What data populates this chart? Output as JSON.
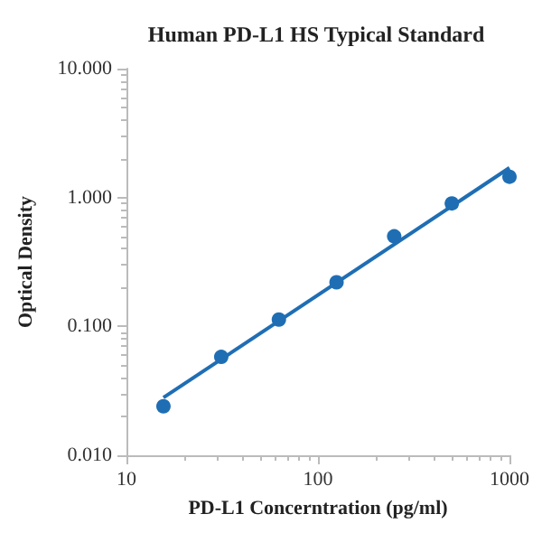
{
  "chart_data": {
    "type": "scatter",
    "title": "Human PD-L1 HS Typical Standard",
    "xlabel": "PD-L1 Concerntration (pg/ml)",
    "ylabel": "Optical Density",
    "log": "xy",
    "xlim": [
      10,
      1000
    ],
    "xticks": [
      10,
      100,
      1000
    ],
    "ylim": [
      0.01,
      10
    ],
    "yticks": [
      {
        "value": 0.01,
        "label": "0.010"
      },
      {
        "value": 0.1,
        "label": "0.100"
      },
      {
        "value": 1,
        "label": "1.000"
      },
      {
        "value": 10,
        "label": "10.000"
      }
    ],
    "grid": false,
    "marker": "circle",
    "series": [
      {
        "color": "#1f6eb4",
        "x": [
          15.6,
          31.25,
          62.5,
          125,
          250,
          500,
          1000
        ],
        "values": [
          0.024,
          0.058,
          0.113,
          0.22,
          0.5,
          0.9,
          1.45
        ]
      },
      {
        "type": "line",
        "color": "#1f6eb4",
        "marker": "none",
        "line_style": "solid",
        "x": [
          15.6,
          1000
        ],
        "values": [
          0.028,
          1.7
        ]
      }
    ]
  }
}
